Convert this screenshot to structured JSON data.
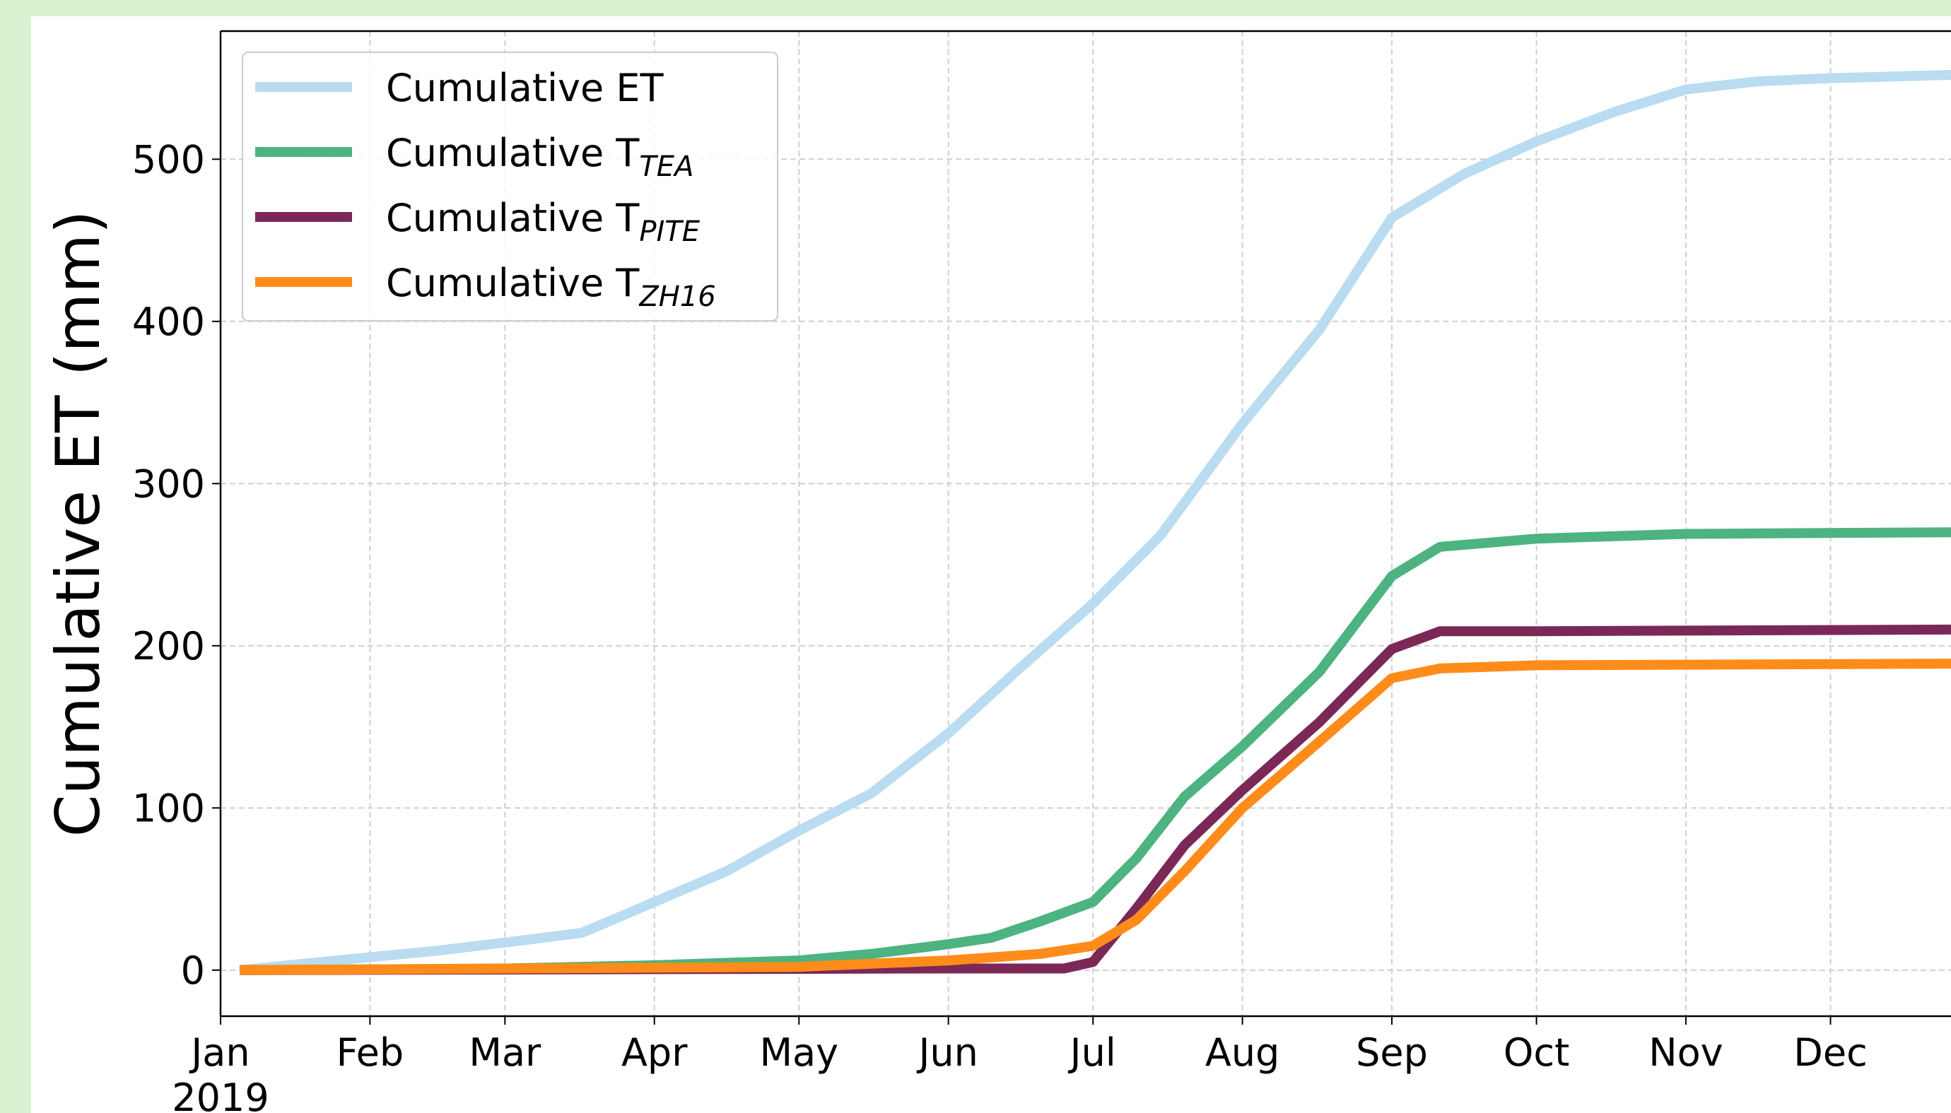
{
  "chart_data": {
    "type": "line",
    "ylabel": "Cumulative ET (mm)",
    "xlim": [
      0,
      359
    ],
    "ylim": [
      -28.4,
      579
    ],
    "xticks": [
      {
        "value": 0,
        "label": "Jan\n2019"
      },
      {
        "value": 31,
        "label": "Feb"
      },
      {
        "value": 59,
        "label": "Mar"
      },
      {
        "value": 90,
        "label": "Apr"
      },
      {
        "value": 120,
        "label": "May"
      },
      {
        "value": 151,
        "label": "Jun"
      },
      {
        "value": 181,
        "label": "Jul"
      },
      {
        "value": 212,
        "label": "Aug"
      },
      {
        "value": 243,
        "label": "Sep"
      },
      {
        "value": 273,
        "label": "Oct"
      },
      {
        "value": 304,
        "label": "Nov"
      },
      {
        "value": 334,
        "label": "Dec"
      }
    ],
    "yticks": [
      0,
      100,
      200,
      300,
      400,
      500
    ],
    "grid": true,
    "legend": "upper left",
    "series": [
      {
        "name": "Cumulative ET",
        "color": "#b9dcf1",
        "x": [
          4,
          31,
          45,
          59,
          75,
          90,
          105,
          120,
          135,
          151,
          165,
          181,
          195,
          212,
          228,
          243,
          258,
          273,
          289,
          304,
          319,
          334,
          359
        ],
        "values": [
          0,
          8,
          12,
          17,
          23,
          42,
          61,
          86,
          109,
          146,
          184,
          226,
          268,
          337,
          395,
          464,
          491,
          511,
          529,
          543,
          548,
          550,
          552
        ]
      },
      {
        "name": "Cumulative T",
        "name_sub": "TEA",
        "color": "#4db380",
        "x": [
          4,
          59,
          90,
          120,
          135,
          151,
          160,
          170,
          181,
          190,
          200,
          212,
          228,
          243,
          253,
          273,
          304,
          359
        ],
        "values": [
          0,
          1,
          3,
          6,
          10,
          16,
          20,
          30,
          42,
          69,
          107,
          138,
          184,
          243,
          261,
          266,
          269,
          270
        ]
      },
      {
        "name": "Cumulative T",
        "name_sub": "PITE",
        "color": "#7b2857",
        "x": [
          4,
          151,
          175,
          181,
          190,
          200,
          212,
          228,
          243,
          253,
          273,
          359
        ],
        "values": [
          0,
          1,
          1,
          5,
          38,
          77,
          111,
          153,
          198,
          209,
          209,
          210
        ]
      },
      {
        "name": "Cumulative T",
        "name_sub": "ZH16",
        "color": "#ff8c1a",
        "x": [
          4,
          120,
          151,
          170,
          181,
          190,
          200,
          212,
          228,
          243,
          253,
          273,
          359
        ],
        "values": [
          0,
          2,
          6,
          10,
          15,
          31,
          61,
          100,
          141,
          180,
          186,
          188,
          189
        ]
      }
    ]
  }
}
